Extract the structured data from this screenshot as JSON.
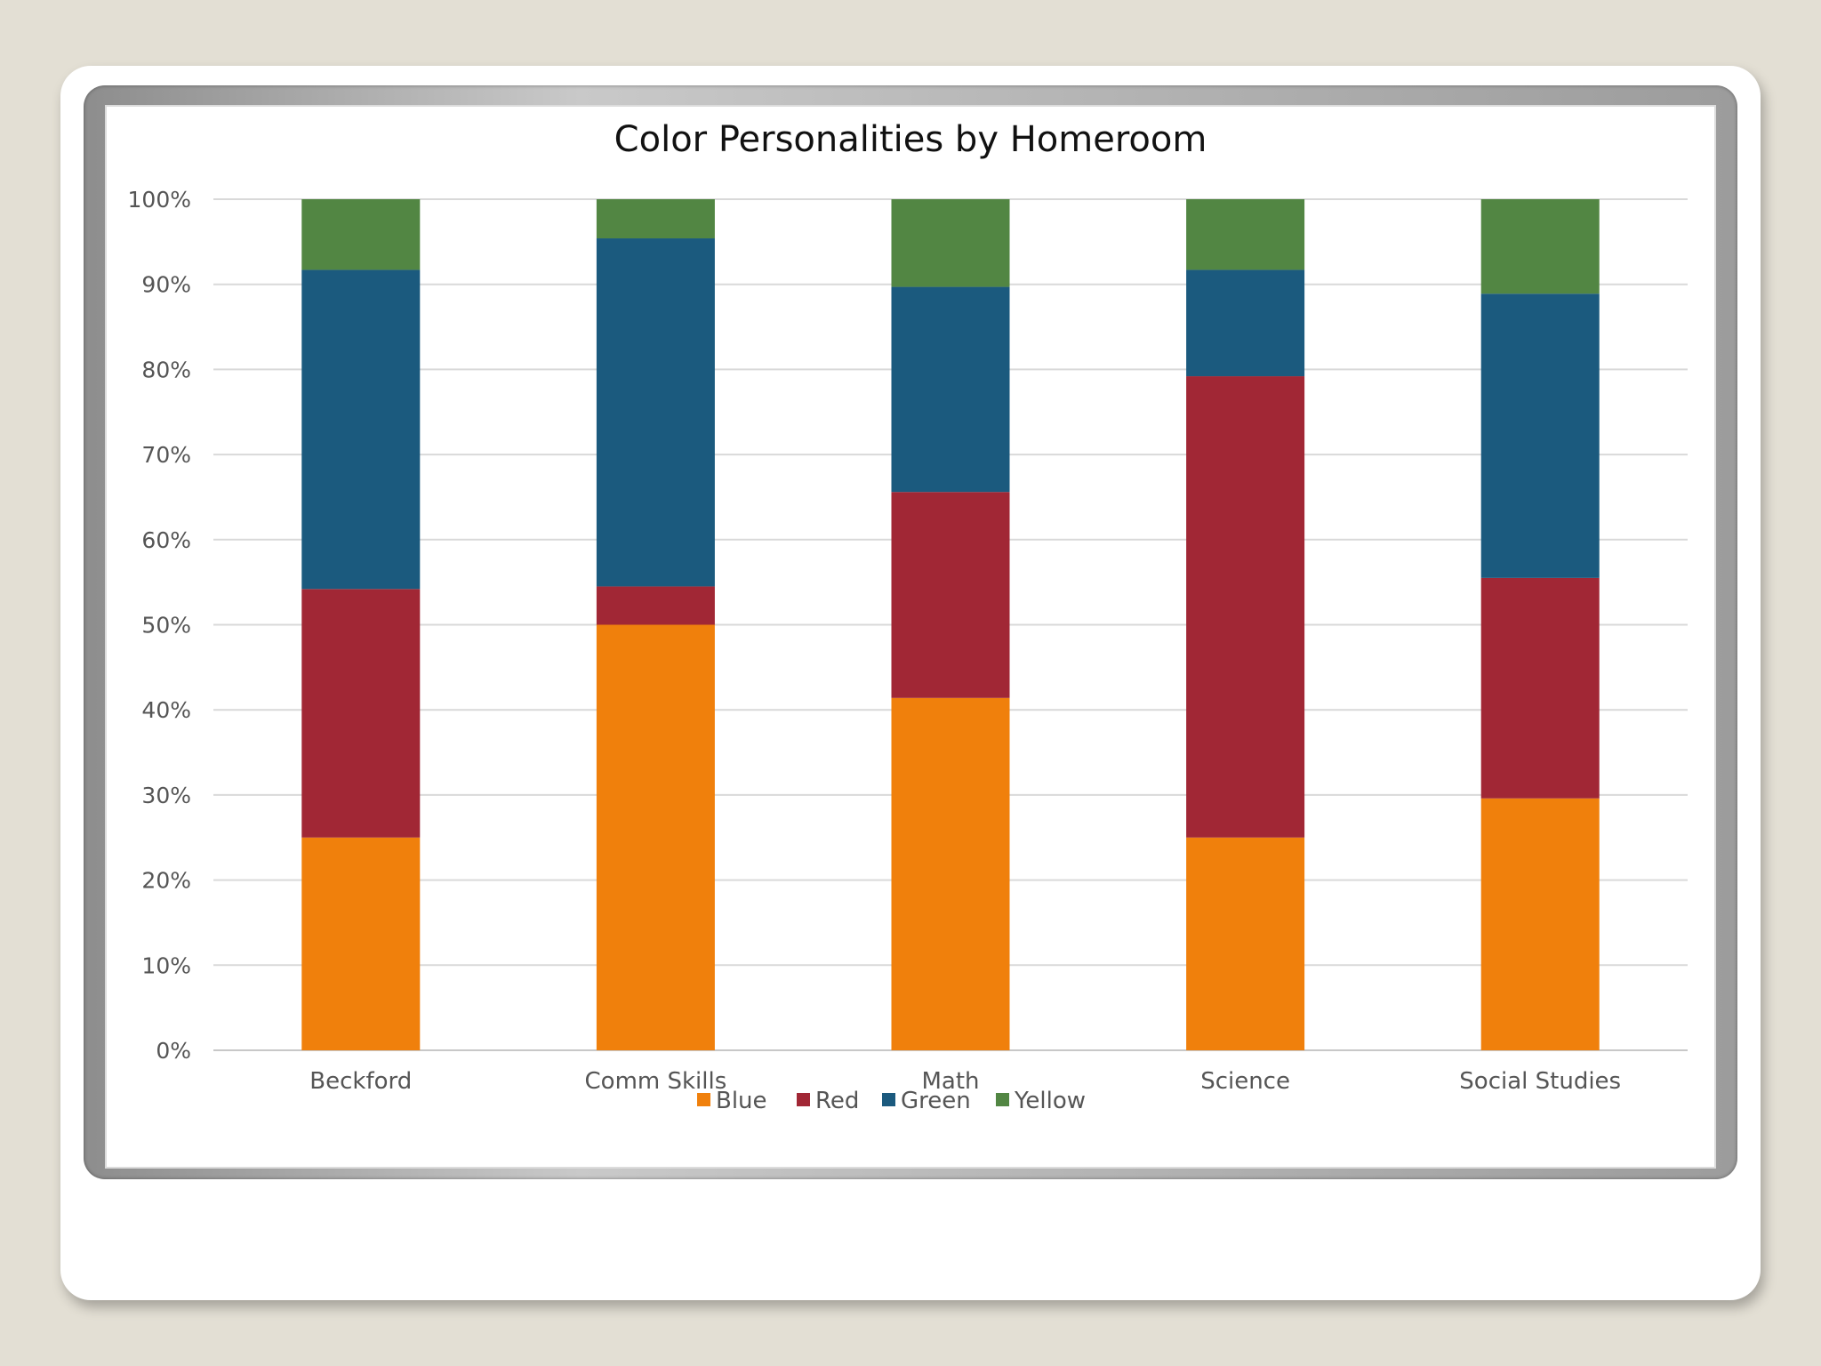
{
  "chart_data": {
    "type": "bar",
    "stacked": true,
    "title": "Color Personalities by Homeroom",
    "categories": [
      "Beckford",
      "Comm Skills",
      "Math",
      "Science",
      "Social Studies"
    ],
    "series": [
      {
        "name": "Blue",
        "color": "#f0800c",
        "values": [
          25.0,
          50.0,
          41.4,
          25.0,
          29.6
        ]
      },
      {
        "name": "Red",
        "color": "#a12735",
        "values": [
          29.2,
          4.5,
          24.2,
          54.2,
          25.9
        ]
      },
      {
        "name": "Green",
        "color": "#1b5a7e",
        "values": [
          37.5,
          40.9,
          24.1,
          12.5,
          33.4
        ]
      },
      {
        "name": "Yellow",
        "color": "#528643",
        "values": [
          8.3,
          4.6,
          10.3,
          8.3,
          11.1
        ]
      }
    ],
    "yticks": [
      "0%",
      "10%",
      "20%",
      "30%",
      "40%",
      "50%",
      "60%",
      "70%",
      "80%",
      "90%",
      "100%"
    ],
    "ylim": [
      0,
      100
    ],
    "grid": true,
    "legend": "bottom"
  }
}
